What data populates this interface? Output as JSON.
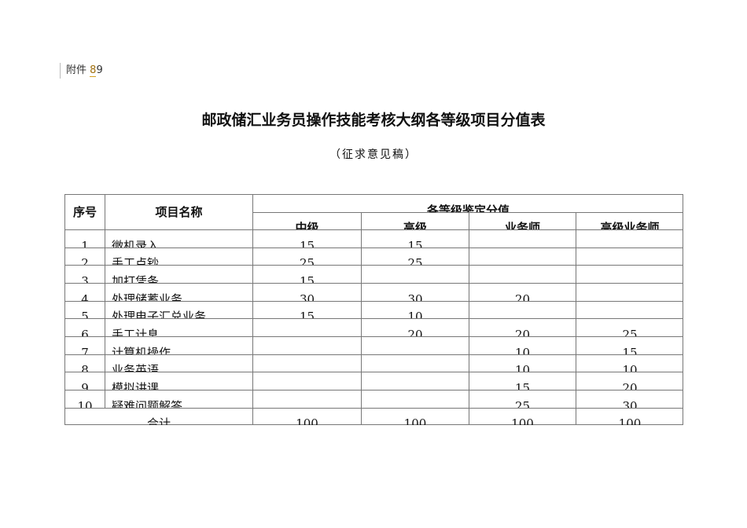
{
  "attachment": {
    "label": "附件",
    "num_a": "8",
    "num_b": "9"
  },
  "title": "邮政储汇业务员操作技能考核大纲各等级项目分值表",
  "subtitle": "（征求意见稿）",
  "table": {
    "headers": {
      "seq": "序号",
      "name": "项目名称",
      "group": "各等级鉴定分值",
      "levels": [
        "中级",
        "高级",
        "业务师",
        "高级业务师"
      ]
    },
    "rows": [
      {
        "seq": "1",
        "name": "微机录入",
        "values": [
          "15",
          "15",
          "",
          ""
        ]
      },
      {
        "seq": "2",
        "name": "手工点钞",
        "values": [
          "25",
          "25",
          "",
          ""
        ]
      },
      {
        "seq": "3",
        "name": "加打凭条",
        "values": [
          "15",
          "",
          "",
          ""
        ]
      },
      {
        "seq": "4",
        "name": "处理储蓄业务",
        "values": [
          "30",
          "30",
          "20",
          ""
        ]
      },
      {
        "seq": "5",
        "name": "处理电子汇兑业务",
        "values": [
          "15",
          "10",
          "",
          ""
        ]
      },
      {
        "seq": "6",
        "name": "手工计息",
        "values": [
          "",
          "20",
          "20",
          "25"
        ]
      },
      {
        "seq": "7",
        "name": "计算机操作",
        "values": [
          "",
          "",
          "10",
          "15"
        ]
      },
      {
        "seq": "8",
        "name": "业务英语",
        "values": [
          "",
          "",
          "10",
          "10"
        ]
      },
      {
        "seq": "9",
        "name": "模拟讲课",
        "values": [
          "",
          "",
          "15",
          "20"
        ]
      },
      {
        "seq": "10",
        "name": "疑难问题解答",
        "values": [
          "",
          "",
          "25",
          "30"
        ]
      }
    ],
    "total": {
      "label": "合计",
      "values": [
        "100",
        "100",
        "100",
        "100"
      ]
    }
  }
}
